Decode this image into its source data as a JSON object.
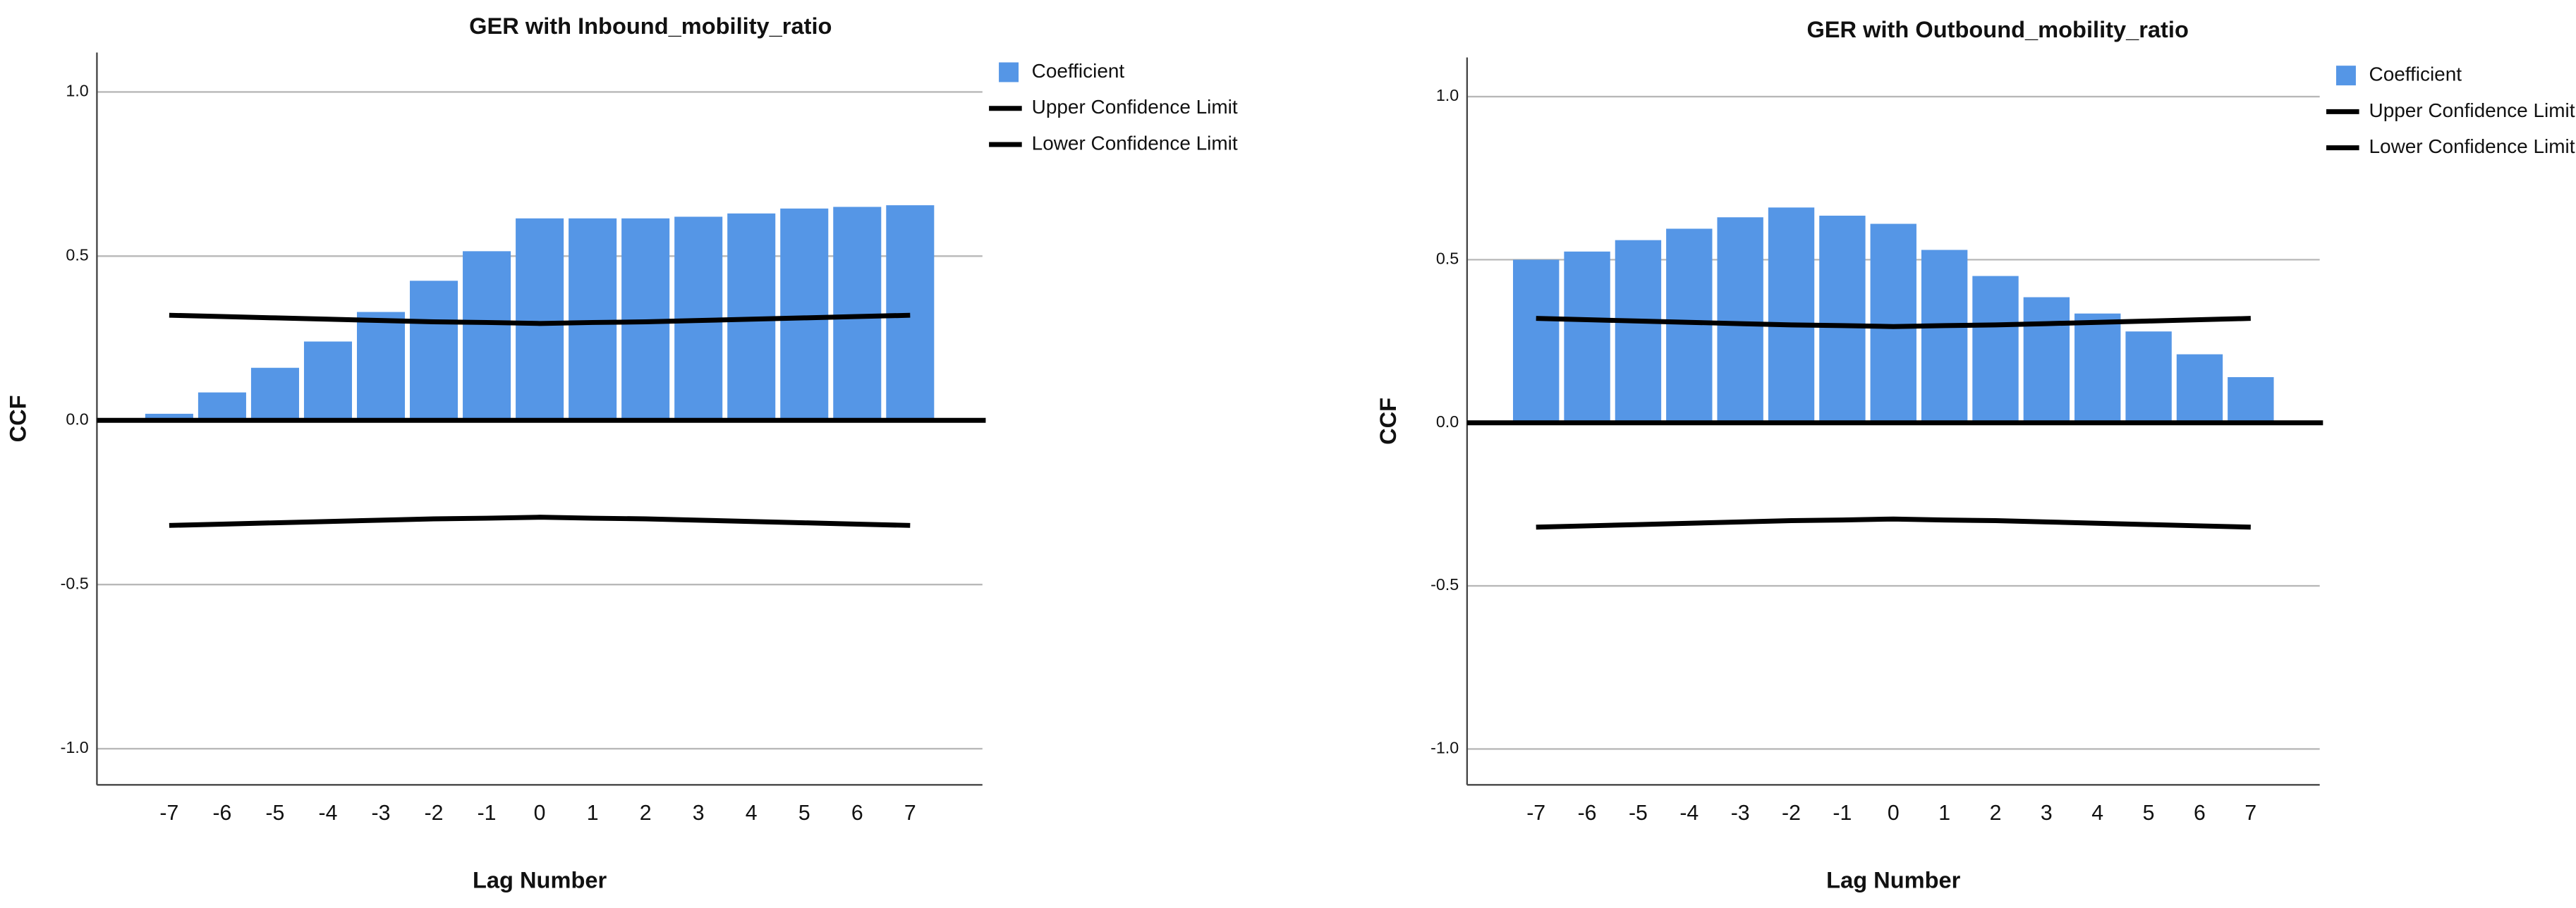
{
  "chart_data": [
    {
      "type": "bar",
      "title": "GER with Inbound_mobility_ratio",
      "x_label": "Lag Number",
      "y_label": "CCF",
      "categories": [
        "-7",
        "-6",
        "-5",
        "-4",
        "-3",
        "-2",
        "-1",
        "0",
        "1",
        "2",
        "3",
        "4",
        "5",
        "6",
        "7"
      ],
      "series": [
        {
          "name": "Coefficient",
          "type": "bar",
          "color": "#5596e6",
          "values": [
            0.02,
            0.085,
            0.16,
            0.24,
            0.33,
            0.425,
            0.515,
            0.615,
            0.615,
            0.615,
            0.62,
            0.63,
            0.645,
            0.65,
            0.655
          ]
        },
        {
          "name": "Upper Confidence Limit",
          "type": "line",
          "color": "#000000",
          "values": [
            0.32,
            0.316,
            0.312,
            0.308,
            0.304,
            0.3,
            0.298,
            0.295,
            0.298,
            0.3,
            0.304,
            0.308,
            0.312,
            0.316,
            0.32
          ]
        },
        {
          "name": "Lower Confidence Limit",
          "type": "line",
          "color": "#000000",
          "values": [
            -0.32,
            -0.316,
            -0.312,
            -0.308,
            -0.304,
            -0.3,
            -0.298,
            -0.295,
            -0.298,
            -0.3,
            -0.304,
            -0.308,
            -0.312,
            -0.316,
            -0.32
          ]
        }
      ],
      "ylim": [
        -1.11,
        1.12
      ],
      "yticks": [
        {
          "value": -1,
          "label": "-1.0"
        },
        {
          "value": -0.5,
          "label": "-0.5"
        },
        {
          "value": 0,
          "label": "0.0"
        },
        {
          "value": 0.5,
          "label": "0.5"
        },
        {
          "value": 1,
          "label": "1.0"
        }
      ],
      "grid": true,
      "legend": "top-right"
    },
    {
      "type": "bar",
      "title": "GER with Outbound_mobility_ratio",
      "x_label": "Lag Number",
      "y_label": "CCF",
      "categories": [
        "-7",
        "-6",
        "-5",
        "-4",
        "-3",
        "-2",
        "-1",
        "0",
        "1",
        "2",
        "3",
        "4",
        "5",
        "6",
        "7"
      ],
      "series": [
        {
          "name": "Coefficient",
          "type": "bar",
          "color": "#5596e6",
          "values": [
            0.5,
            0.525,
            0.56,
            0.595,
            0.63,
            0.66,
            0.635,
            0.61,
            0.53,
            0.45,
            0.385,
            0.335,
            0.28,
            0.21,
            0.14
          ]
        },
        {
          "name": "Upper Confidence Limit",
          "type": "line",
          "color": "#000000",
          "values": [
            0.32,
            0.316,
            0.312,
            0.308,
            0.304,
            0.3,
            0.298,
            0.295,
            0.298,
            0.3,
            0.304,
            0.308,
            0.312,
            0.316,
            0.32
          ]
        },
        {
          "name": "Lower Confidence Limit",
          "type": "line",
          "color": "#000000",
          "values": [
            -0.32,
            -0.316,
            -0.312,
            -0.308,
            -0.304,
            -0.3,
            -0.298,
            -0.295,
            -0.298,
            -0.3,
            -0.304,
            -0.308,
            -0.312,
            -0.316,
            -0.32
          ]
        }
      ],
      "ylim": [
        -1.11,
        1.12
      ],
      "yticks": [
        {
          "value": -1,
          "label": "-1.0"
        },
        {
          "value": -0.5,
          "label": "-0.5"
        },
        {
          "value": 0,
          "label": "0.0"
        },
        {
          "value": 0.5,
          "label": "0.5"
        },
        {
          "value": 1,
          "label": "1.0"
        }
      ],
      "grid": true,
      "legend": "top-right"
    }
  ]
}
